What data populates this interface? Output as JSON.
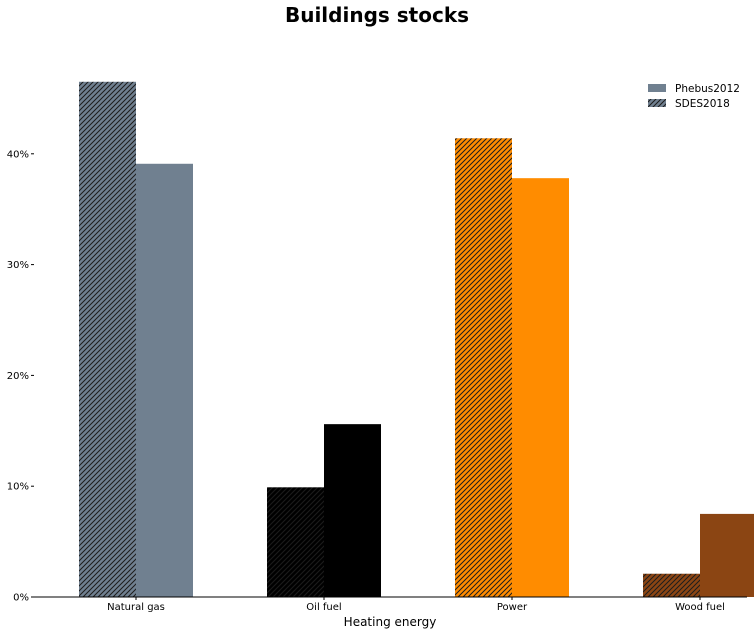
{
  "chart_data": {
    "type": "bar",
    "title": "Buildings stocks",
    "xlabel": "Heating energy",
    "ylabel": "",
    "ylim": [
      0,
      0.5
    ],
    "yticks": [
      0,
      0.1,
      0.2,
      0.3,
      0.4
    ],
    "ytick_labels": [
      "0%",
      "10%",
      "20%",
      "30%",
      "40%"
    ],
    "categories": [
      "Natural gas",
      "Oil fuel",
      "Power",
      "Wood fuel"
    ],
    "category_colors": [
      "#708090",
      "#000000",
      "#ff8c00",
      "#8b4513"
    ],
    "series": [
      {
        "name": "SDES2018",
        "pattern": "hatched",
        "values": [
          0.465,
          0.099,
          0.414,
          0.021
        ]
      },
      {
        "name": "Phebus2012",
        "pattern": "solid",
        "values": [
          0.391,
          0.156,
          0.378,
          0.075
        ]
      }
    ],
    "legend": {
      "placement": "top-right",
      "entries": [
        {
          "label": "Phebus2012",
          "pattern": "solid",
          "color": "#708090"
        },
        {
          "label": "SDES2018",
          "pattern": "hatched",
          "color": "#708090"
        }
      ]
    },
    "grid": false
  }
}
